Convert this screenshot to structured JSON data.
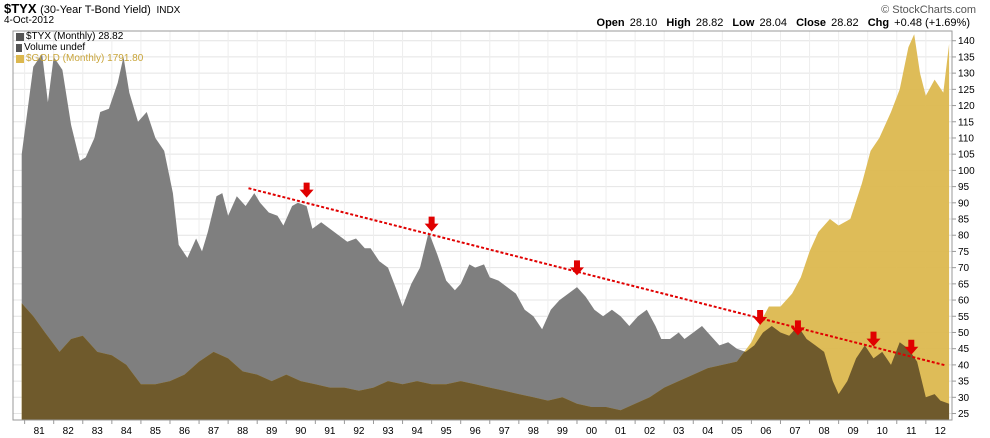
{
  "header": {
    "symbol": "$TYX",
    "description": "(30-Year T-Bond Yield)",
    "exchange": "INDX",
    "date": "4-Oct-2012",
    "brand": "© StockCharts.com",
    "open_label": "Open",
    "open": "28.10",
    "high_label": "High",
    "high": "28.82",
    "low_label": "Low",
    "low": "28.04",
    "close_label": "Close",
    "close": "28.82",
    "chg_label": "Chg",
    "chg": "+0.48 (+1.69%)"
  },
  "legend": {
    "tyx": "$TYX (Monthly) 28.82",
    "volume": "Volume undef",
    "gold": "$GOLD (Monthly) 1791.80"
  },
  "colors": {
    "tyx_fill": "#7f7f7f",
    "gold_fill": "#dcb84f",
    "overlap_fill": "#6f5a2c",
    "trendline": "#e00000",
    "arrow": "#e00000"
  },
  "chart_data": {
    "type": "area",
    "x_tick_labels": [
      "81",
      "82",
      "83",
      "84",
      "85",
      "86",
      "87",
      "88",
      "89",
      "90",
      "91",
      "92",
      "93",
      "94",
      "95",
      "96",
      "97",
      "98",
      "99",
      "00",
      "01",
      "02",
      "03",
      "04",
      "05",
      "06",
      "07",
      "08",
      "09",
      "10",
      "11",
      "12"
    ],
    "y_tick_labels": [
      25,
      30,
      35,
      40,
      45,
      50,
      55,
      60,
      65,
      70,
      75,
      80,
      85,
      90,
      95,
      100,
      105,
      110,
      115,
      120,
      125,
      130,
      135,
      140
    ],
    "ylim": [
      23,
      143
    ],
    "series": [
      {
        "name": "$TYX (Monthly)",
        "x": [
          1980.9,
          1981.3,
          1981.6,
          1981.8,
          1982.0,
          1982.3,
          1982.6,
          1982.9,
          1983.1,
          1983.4,
          1983.6,
          1983.9,
          1984.2,
          1984.4,
          1984.6,
          1984.9,
          1985.2,
          1985.5,
          1985.8,
          1986.1,
          1986.3,
          1986.6,
          1986.9,
          1987.1,
          1987.3,
          1987.6,
          1987.8,
          1988.0,
          1988.3,
          1988.6,
          1988.9,
          1989.1,
          1989.4,
          1989.7,
          1989.9,
          1990.2,
          1990.4,
          1990.7,
          1990.9,
          1991.2,
          1991.5,
          1991.8,
          1992.1,
          1992.4,
          1992.7,
          1992.9,
          1993.2,
          1993.5,
          1993.8,
          1994.0,
          1994.3,
          1994.6,
          1994.9,
          1995.2,
          1995.5,
          1995.8,
          1996.0,
          1996.3,
          1996.5,
          1996.8,
          1997.0,
          1997.3,
          1997.6,
          1997.9,
          1998.2,
          1998.5,
          1998.8,
          1999.1,
          1999.4,
          1999.7,
          2000.0,
          2000.3,
          2000.6,
          2000.9,
          2001.2,
          2001.5,
          2001.8,
          2002.1,
          2002.4,
          2002.7,
          2002.9,
          2003.2,
          2003.5,
          2003.7,
          2004.0,
          2004.3,
          2004.6,
          2004.9,
          2005.2,
          2005.5,
          2005.8,
          2006.1,
          2006.4,
          2006.7,
          2007.0,
          2007.3,
          2007.6,
          2007.9,
          2008.2,
          2008.5,
          2008.8,
          2009.0,
          2009.3,
          2009.6,
          2009.9,
          2010.2,
          2010.5,
          2010.8,
          2011.1,
          2011.4,
          2011.7,
          2012.0,
          2012.3,
          2012.5,
          2012.8
        ],
        "values": [
          105,
          132,
          136,
          121,
          135,
          131,
          114,
          103,
          104,
          110,
          118,
          119,
          127,
          135,
          124,
          115,
          118,
          110,
          106,
          93,
          77,
          73,
          79,
          75,
          81,
          92,
          93,
          86,
          92,
          89,
          93,
          90,
          87,
          86,
          83,
          89,
          90,
          89,
          82,
          84,
          82,
          80,
          78,
          79,
          76,
          76,
          72,
          70,
          63,
          58,
          65,
          70,
          81,
          74,
          66,
          63,
          65,
          71,
          70,
          71,
          67,
          66,
          64,
          62,
          57,
          55,
          51,
          57,
          60,
          62,
          64,
          61,
          57,
          55,
          57,
          55,
          52,
          55,
          57,
          52,
          48,
          48,
          50,
          48,
          50,
          52,
          49,
          46,
          47,
          45,
          44,
          46,
          50,
          52,
          50,
          49,
          52,
          48,
          46,
          44,
          35,
          31,
          35,
          42,
          46,
          42,
          44,
          40,
          47,
          45,
          41,
          30,
          31,
          29,
          28
        ],
        "color": "#7f7f7f"
      },
      {
        "name": "$GOLD (Monthly)",
        "x": [
          1980.9,
          1981.3,
          1981.7,
          1982.2,
          1982.6,
          1983.0,
          1983.5,
          1984.0,
          1984.5,
          1985.0,
          1985.5,
          1986.0,
          1986.5,
          1987.0,
          1987.5,
          1988.0,
          1988.5,
          1989.0,
          1989.5,
          1990.0,
          1990.5,
          1991.0,
          1991.5,
          1992.0,
          1992.5,
          1993.0,
          1993.5,
          1994.0,
          1994.5,
          1995.0,
          1995.5,
          1996.0,
          1996.5,
          1997.0,
          1997.5,
          1998.0,
          1998.5,
          1999.0,
          1999.5,
          2000.0,
          2000.5,
          2001.0,
          2001.5,
          2002.0,
          2002.5,
          2003.0,
          2003.5,
          2004.0,
          2004.5,
          2005.0,
          2005.5,
          2006.0,
          2006.3,
          2006.6,
          2007.0,
          2007.4,
          2007.7,
          2008.0,
          2008.3,
          2008.7,
          2009.0,
          2009.4,
          2009.8,
          2010.1,
          2010.4,
          2010.8,
          2011.1,
          2011.4,
          2011.6,
          2011.8,
          2012.0,
          2012.3,
          2012.6,
          2012.8
        ],
        "values": [
          59,
          55,
          50,
          44,
          48,
          49,
          44,
          43,
          40,
          34,
          34,
          35,
          37,
          41,
          44,
          42,
          38,
          37,
          35,
          37,
          35,
          34,
          33,
          33,
          32,
          33,
          35,
          34,
          35,
          34,
          34,
          35,
          34,
          33,
          32,
          31,
          30,
          29,
          30,
          28,
          27,
          27,
          26,
          28,
          30,
          33,
          35,
          37,
          39,
          40,
          41,
          47,
          53,
          58,
          58,
          62,
          67,
          75,
          81,
          85,
          83,
          85,
          96,
          106,
          110,
          118,
          125,
          138,
          142,
          130,
          123,
          128,
          124,
          139
        ],
        "color": "#dcb84f"
      }
    ],
    "trendline": {
      "from": {
        "x": 1988.7,
        "y": 94.5
      },
      "to": {
        "x": 2012.7,
        "y": 39.8
      }
    },
    "peak_markers": [
      {
        "x": 1990.7,
        "y": 91
      },
      {
        "x": 1995.0,
        "y": 80.5
      },
      {
        "x": 2000.0,
        "y": 67
      },
      {
        "x": 2006.3,
        "y": 51.7
      },
      {
        "x": 2007.6,
        "y": 48.5
      },
      {
        "x": 2010.2,
        "y": 45
      },
      {
        "x": 2011.5,
        "y": 42.5
      }
    ]
  }
}
